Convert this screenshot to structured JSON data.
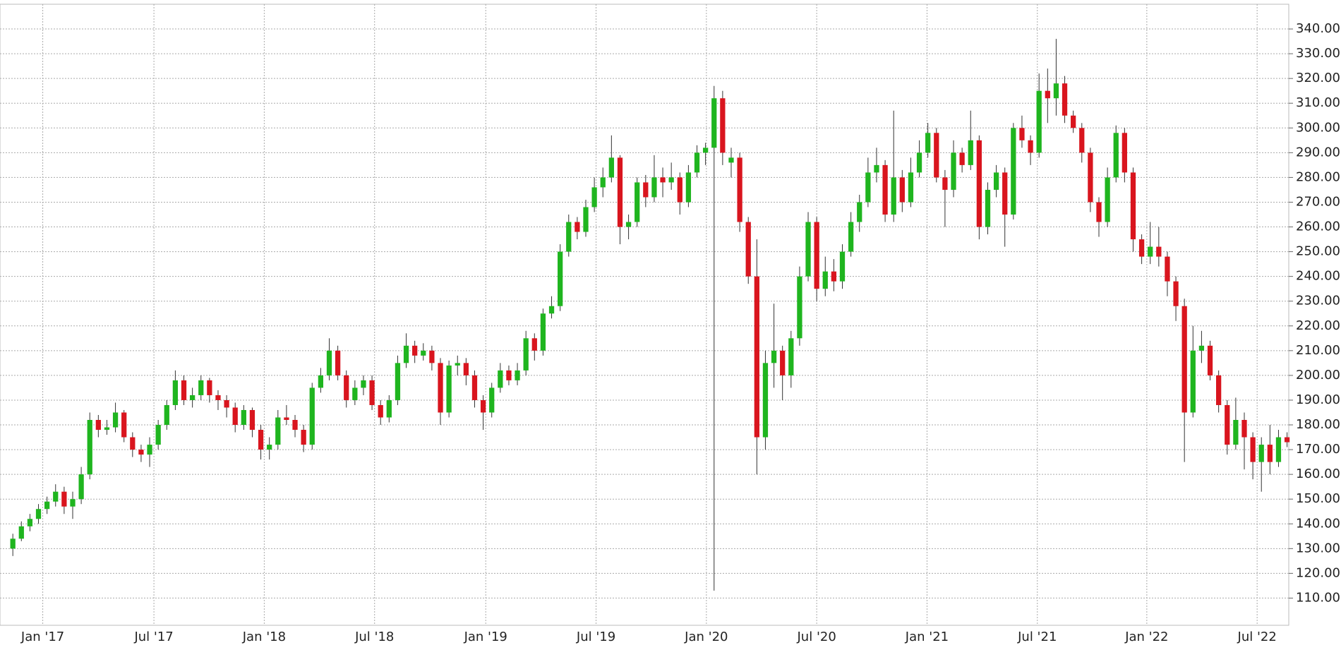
{
  "chart_data": {
    "type": "candlestick",
    "up_color": "#1fb51f",
    "down_color": "#d9151e",
    "wick_color": "#333333",
    "grid": true,
    "xlim": [
      -1.5,
      149.2
    ],
    "ylim": [
      99,
      350
    ],
    "xticks": [
      {
        "value": 3.5,
        "label": "Jan '17"
      },
      {
        "value": 16.5,
        "label": "Jul '17"
      },
      {
        "value": 29.4,
        "label": "Jan '18"
      },
      {
        "value": 42.3,
        "label": "Jul '18"
      },
      {
        "value": 55.3,
        "label": "Jan '19"
      },
      {
        "value": 68.2,
        "label": "Jul '19"
      },
      {
        "value": 81.1,
        "label": "Jan '20"
      },
      {
        "value": 94,
        "label": "Jul '20"
      },
      {
        "value": 106.9,
        "label": "Jan '21"
      },
      {
        "value": 119.8,
        "label": "Jul '21"
      },
      {
        "value": 132.6,
        "label": "Jan '22"
      },
      {
        "value": 145.5,
        "label": "Jul '22"
      }
    ],
    "yticks": [
      {
        "value": 110,
        "label": "110.00"
      },
      {
        "value": 120,
        "label": "120.00"
      },
      {
        "value": 130,
        "label": "130.00"
      },
      {
        "value": 140,
        "label": "140.00"
      },
      {
        "value": 150,
        "label": "150.00"
      },
      {
        "value": 160,
        "label": "160.00"
      },
      {
        "value": 170,
        "label": "170.00"
      },
      {
        "value": 180,
        "label": "180.00"
      },
      {
        "value": 190,
        "label": "190.00"
      },
      {
        "value": 200,
        "label": "200.00"
      },
      {
        "value": 210,
        "label": "210.00"
      },
      {
        "value": 220,
        "label": "220.00"
      },
      {
        "value": 230,
        "label": "230.00"
      },
      {
        "value": 240,
        "label": "240.00"
      },
      {
        "value": 250,
        "label": "250.00"
      },
      {
        "value": 260,
        "label": "260.00"
      },
      {
        "value": 270,
        "label": "270.00"
      },
      {
        "value": 280,
        "label": "280.00"
      },
      {
        "value": 290,
        "label": "290.00"
      },
      {
        "value": 300,
        "label": "300.00"
      },
      {
        "value": 310,
        "label": "310.00"
      },
      {
        "value": 320,
        "label": "320.00"
      },
      {
        "value": 330,
        "label": "330.00"
      },
      {
        "value": 340,
        "label": "340.00"
      }
    ],
    "ohlc": [
      [
        130,
        136,
        127,
        134
      ],
      [
        134,
        141,
        133,
        139
      ],
      [
        139,
        144,
        137,
        142
      ],
      [
        142,
        148,
        140,
        146
      ],
      [
        146,
        151,
        144,
        149
      ],
      [
        149,
        156,
        147,
        153
      ],
      [
        153,
        155,
        144,
        147
      ],
      [
        147,
        153,
        142,
        150
      ],
      [
        150,
        163,
        148,
        160
      ],
      [
        160,
        185,
        158,
        182
      ],
      [
        182,
        184,
        175,
        178
      ],
      [
        178,
        182,
        176,
        179
      ],
      [
        179,
        189,
        177,
        185
      ],
      [
        185,
        186,
        173,
        175
      ],
      [
        175,
        177,
        167,
        170
      ],
      [
        170,
        172,
        165,
        168
      ],
      [
        168,
        175,
        163,
        172
      ],
      [
        172,
        182,
        170,
        180
      ],
      [
        180,
        190,
        178,
        188
      ],
      [
        188,
        202,
        186,
        198
      ],
      [
        198,
        200,
        188,
        190
      ],
      [
        190,
        195,
        187,
        192
      ],
      [
        192,
        200,
        190,
        198
      ],
      [
        198,
        199,
        189,
        192
      ],
      [
        192,
        194,
        186,
        190
      ],
      [
        190,
        192,
        183,
        187
      ],
      [
        187,
        189,
        177,
        180
      ],
      [
        180,
        188,
        178,
        186
      ],
      [
        186,
        187,
        175,
        178
      ],
      [
        178,
        180,
        166,
        170
      ],
      [
        170,
        175,
        166,
        172
      ],
      [
        172,
        186,
        170,
        183
      ],
      [
        183,
        188,
        180,
        182
      ],
      [
        182,
        184,
        175,
        178
      ],
      [
        178,
        180,
        169,
        172
      ],
      [
        172,
        197,
        170,
        195
      ],
      [
        195,
        203,
        193,
        200
      ],
      [
        200,
        215,
        198,
        210
      ],
      [
        210,
        212,
        198,
        200
      ],
      [
        200,
        202,
        187,
        190
      ],
      [
        190,
        198,
        188,
        195
      ],
      [
        195,
        200,
        192,
        198
      ],
      [
        198,
        200,
        186,
        188
      ],
      [
        188,
        190,
        180,
        183
      ],
      [
        183,
        192,
        181,
        190
      ],
      [
        190,
        208,
        188,
        205
      ],
      [
        205,
        217,
        203,
        212
      ],
      [
        212,
        214,
        205,
        208
      ],
      [
        208,
        213,
        206,
        210
      ],
      [
        210,
        212,
        202,
        205
      ],
      [
        205,
        207,
        180,
        185
      ],
      [
        185,
        206,
        183,
        204
      ],
      [
        204,
        208,
        200,
        205
      ],
      [
        205,
        207,
        196,
        200
      ],
      [
        200,
        202,
        187,
        190
      ],
      [
        190,
        192,
        178,
        185
      ],
      [
        185,
        197,
        183,
        195
      ],
      [
        195,
        205,
        193,
        202
      ],
      [
        202,
        204,
        196,
        198
      ],
      [
        198,
        205,
        196,
        202
      ],
      [
        202,
        218,
        200,
        215
      ],
      [
        215,
        217,
        206,
        210
      ],
      [
        210,
        227,
        208,
        225
      ],
      [
        225,
        232,
        223,
        228
      ],
      [
        228,
        253,
        226,
        250
      ],
      [
        250,
        265,
        248,
        262
      ],
      [
        262,
        264,
        255,
        258
      ],
      [
        258,
        271,
        256,
        268
      ],
      [
        268,
        280,
        266,
        276
      ],
      [
        276,
        284,
        272,
        280
      ],
      [
        280,
        297,
        278,
        288
      ],
      [
        288,
        289,
        253,
        260
      ],
      [
        260,
        265,
        255,
        262
      ],
      [
        262,
        280,
        260,
        278
      ],
      [
        278,
        281,
        268,
        272
      ],
      [
        272,
        289,
        270,
        280
      ],
      [
        280,
        284,
        272,
        278
      ],
      [
        278,
        286,
        275,
        280
      ],
      [
        280,
        282,
        265,
        270
      ],
      [
        270,
        285,
        268,
        282
      ],
      [
        282,
        293,
        280,
        290
      ],
      [
        290,
        294,
        285,
        292
      ],
      [
        292,
        317,
        113,
        312
      ],
      [
        312,
        315,
        285,
        290
      ],
      [
        286,
        292,
        280,
        288
      ],
      [
        288,
        290,
        258,
        262
      ],
      [
        262,
        264,
        237,
        240
      ],
      [
        240,
        255,
        160,
        175
      ],
      [
        175,
        210,
        170,
        205
      ],
      [
        205,
        229,
        195,
        210
      ],
      [
        210,
        212,
        190,
        200
      ],
      [
        200,
        218,
        195,
        215
      ],
      [
        215,
        244,
        212,
        240
      ],
      [
        240,
        266,
        238,
        262
      ],
      [
        262,
        264,
        230,
        235
      ],
      [
        235,
        248,
        232,
        242
      ],
      [
        242,
        247,
        234,
        238
      ],
      [
        238,
        253,
        235,
        250
      ],
      [
        250,
        266,
        248,
        262
      ],
      [
        262,
        273,
        258,
        270
      ],
      [
        270,
        288,
        268,
        282
      ],
      [
        282,
        292,
        278,
        285
      ],
      [
        285,
        287,
        262,
        265
      ],
      [
        265,
        307,
        262,
        280
      ],
      [
        280,
        283,
        266,
        270
      ],
      [
        270,
        288,
        268,
        282
      ],
      [
        282,
        295,
        280,
        290
      ],
      [
        290,
        302,
        288,
        298
      ],
      [
        298,
        300,
        278,
        280
      ],
      [
        280,
        283,
        260,
        275
      ],
      [
        275,
        295,
        272,
        290
      ],
      [
        290,
        292,
        282,
        285
      ],
      [
        285,
        307,
        283,
        295
      ],
      [
        295,
        297,
        255,
        260
      ],
      [
        260,
        278,
        257,
        275
      ],
      [
        275,
        285,
        272,
        282
      ],
      [
        282,
        284,
        252,
        265
      ],
      [
        265,
        302,
        263,
        300
      ],
      [
        300,
        305,
        292,
        295
      ],
      [
        295,
        297,
        285,
        290
      ],
      [
        290,
        322,
        288,
        315
      ],
      [
        315,
        324,
        302,
        312
      ],
      [
        312,
        336,
        305,
        318
      ],
      [
        318,
        321,
        302,
        305
      ],
      [
        305,
        307,
        298,
        300
      ],
      [
        300,
        302,
        286,
        290
      ],
      [
        290,
        292,
        266,
        270
      ],
      [
        270,
        272,
        256,
        262
      ],
      [
        262,
        284,
        260,
        280
      ],
      [
        280,
        301,
        278,
        298
      ],
      [
        298,
        300,
        278,
        282
      ],
      [
        282,
        284,
        250,
        255
      ],
      [
        255,
        257,
        245,
        248
      ],
      [
        248,
        262,
        245,
        252
      ],
      [
        252,
        260,
        244,
        248
      ],
      [
        248,
        250,
        232,
        238
      ],
      [
        238,
        240,
        222,
        228
      ],
      [
        228,
        231,
        165,
        185
      ],
      [
        185,
        220,
        183,
        210
      ],
      [
        210,
        218,
        205,
        212
      ],
      [
        212,
        214,
        198,
        200
      ],
      [
        200,
        202,
        185,
        188
      ],
      [
        188,
        190,
        168,
        172
      ],
      [
        172,
        191,
        170,
        182
      ],
      [
        182,
        185,
        162,
        175
      ],
      [
        175,
        177,
        158,
        165
      ],
      [
        165,
        175,
        153,
        172
      ],
      [
        172,
        180,
        160,
        165
      ],
      [
        165,
        178,
        163,
        175
      ],
      [
        175,
        177,
        171,
        173
      ]
    ]
  }
}
